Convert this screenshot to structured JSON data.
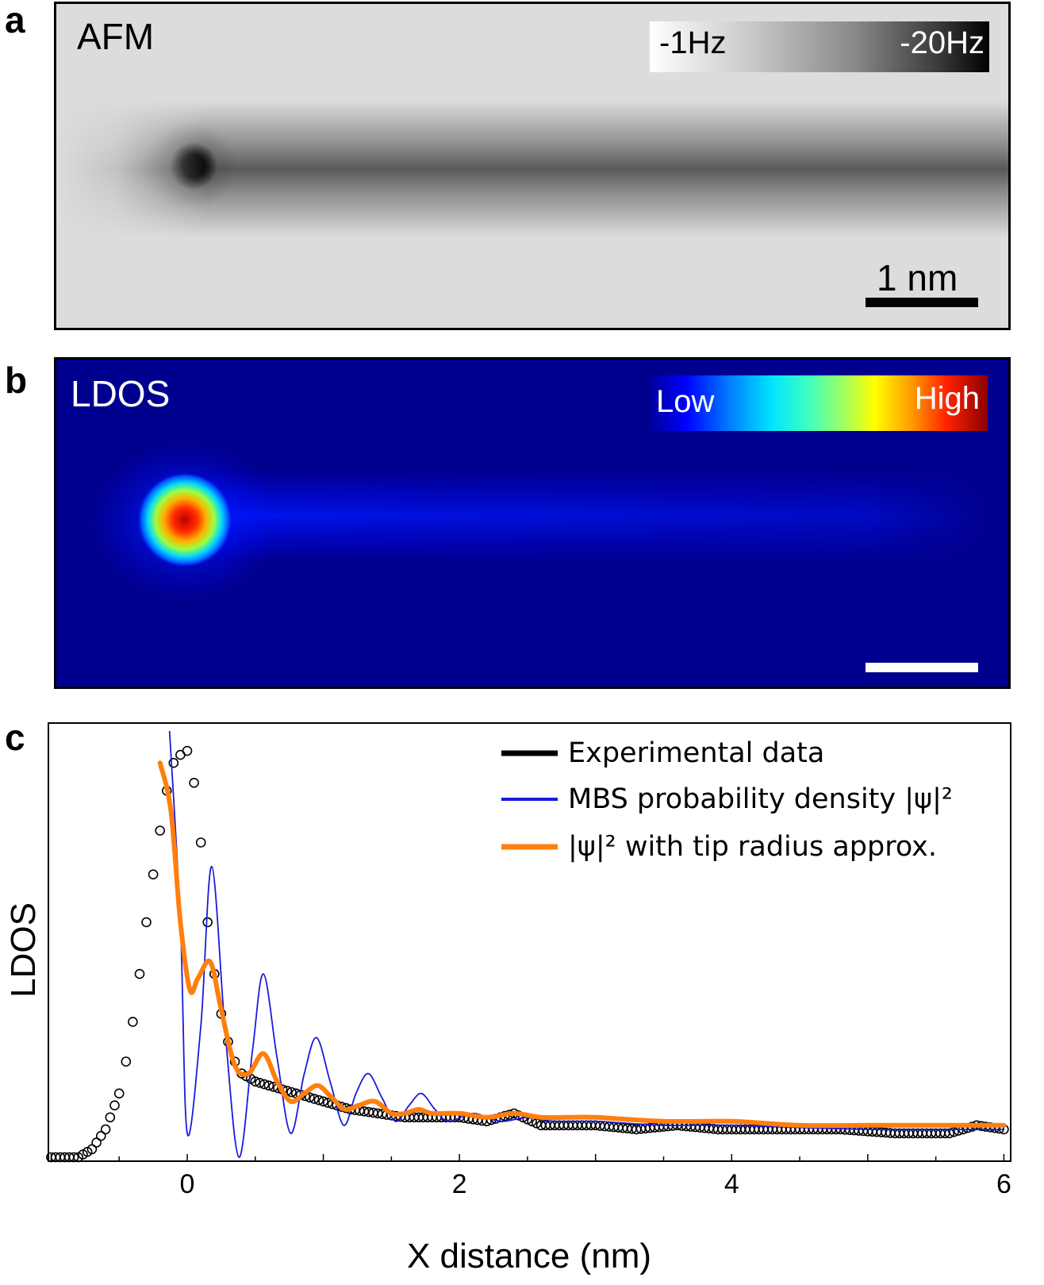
{
  "panel_a": {
    "letter": "a",
    "label": "AFM",
    "colorbar_min": "-1Hz",
    "colorbar_max": "-20Hz",
    "scalebar_label": "1 nm"
  },
  "panel_b": {
    "letter": "b",
    "label": "LDOS",
    "colorbar_min": "Low",
    "colorbar_max": "High"
  },
  "panel_c": {
    "letter": "c"
  },
  "colors": {
    "experimental": "#000000",
    "mbs": "#1a1adc",
    "tip": "#ff7f0e",
    "ldos_background": "#00008e"
  },
  "chart_data": {
    "type": "line",
    "xlabel": "X distance (nm)",
    "ylabel": "LDOS",
    "xlim": [
      -1.02,
      6.05
    ],
    "ylim": [
      0,
      1.1
    ],
    "xticks": [
      0,
      2,
      4,
      6
    ],
    "grid": false,
    "legend_position": "top-right",
    "series": [
      {
        "name": "Experimental data",
        "marker": "open-circle",
        "x": [
          -1.0,
          -0.8,
          -0.7,
          -0.6,
          -0.5,
          -0.45,
          -0.4,
          -0.35,
          -0.3,
          -0.25,
          -0.2,
          -0.15,
          -0.1,
          -0.05,
          0.0,
          0.05,
          0.1,
          0.15,
          0.2,
          0.25,
          0.3,
          0.35,
          0.4,
          0.5,
          0.6,
          0.7,
          0.8,
          0.9,
          1.0,
          1.2,
          1.4,
          1.6,
          1.8,
          2.0,
          2.2,
          2.4,
          2.6,
          2.8,
          3.0,
          3.3,
          3.6,
          3.9,
          4.2,
          4.5,
          4.8,
          5.2,
          5.6,
          5.8,
          6.0
        ],
        "y": [
          0.01,
          0.01,
          0.03,
          0.08,
          0.17,
          0.25,
          0.35,
          0.47,
          0.6,
          0.72,
          0.83,
          0.93,
          1.0,
          1.02,
          1.03,
          0.95,
          0.8,
          0.6,
          0.47,
          0.37,
          0.3,
          0.25,
          0.22,
          0.2,
          0.19,
          0.18,
          0.17,
          0.16,
          0.15,
          0.13,
          0.12,
          0.11,
          0.11,
          0.11,
          0.1,
          0.12,
          0.09,
          0.09,
          0.09,
          0.08,
          0.09,
          0.08,
          0.08,
          0.08,
          0.08,
          0.07,
          0.07,
          0.09,
          0.08
        ]
      },
      {
        "name": "MBS probability density |ψ|²",
        "x": [
          -0.13,
          -0.05,
          0.0,
          0.1,
          0.18,
          0.28,
          0.38,
          0.48,
          0.56,
          0.66,
          0.76,
          0.86,
          0.95,
          1.05,
          1.15,
          1.24,
          1.33,
          1.43,
          1.53,
          1.63,
          1.72,
          1.82,
          1.92,
          2.1,
          2.3,
          2.5,
          2.7,
          3.0,
          3.5,
          4.0,
          5.0,
          6.0
        ],
        "y": [
          1.08,
          0.6,
          0.07,
          0.34,
          0.74,
          0.32,
          0.01,
          0.28,
          0.47,
          0.26,
          0.07,
          0.22,
          0.31,
          0.2,
          0.09,
          0.17,
          0.22,
          0.16,
          0.1,
          0.14,
          0.17,
          0.13,
          0.1,
          0.12,
          0.1,
          0.11,
          0.1,
          0.1,
          0.09,
          0.09,
          0.08,
          0.08
        ]
      },
      {
        "name": "|ψ|² with tip radius approx.",
        "x": [
          -0.2,
          -0.12,
          -0.05,
          0.02,
          0.08,
          0.17,
          0.25,
          0.35,
          0.45,
          0.56,
          0.66,
          0.76,
          0.86,
          0.96,
          1.06,
          1.16,
          1.26,
          1.38,
          1.5,
          1.6,
          1.7,
          1.8,
          2.0,
          2.2,
          2.4,
          2.6,
          2.8,
          3.0,
          3.5,
          4.0,
          4.5,
          5.0,
          5.5,
          6.0
        ],
        "y": [
          1.0,
          0.88,
          0.6,
          0.43,
          0.46,
          0.5,
          0.38,
          0.24,
          0.22,
          0.27,
          0.2,
          0.15,
          0.17,
          0.19,
          0.16,
          0.13,
          0.14,
          0.15,
          0.12,
          0.12,
          0.13,
          0.12,
          0.12,
          0.11,
          0.12,
          0.11,
          0.11,
          0.11,
          0.1,
          0.1,
          0.09,
          0.09,
          0.09,
          0.09
        ]
      }
    ]
  }
}
